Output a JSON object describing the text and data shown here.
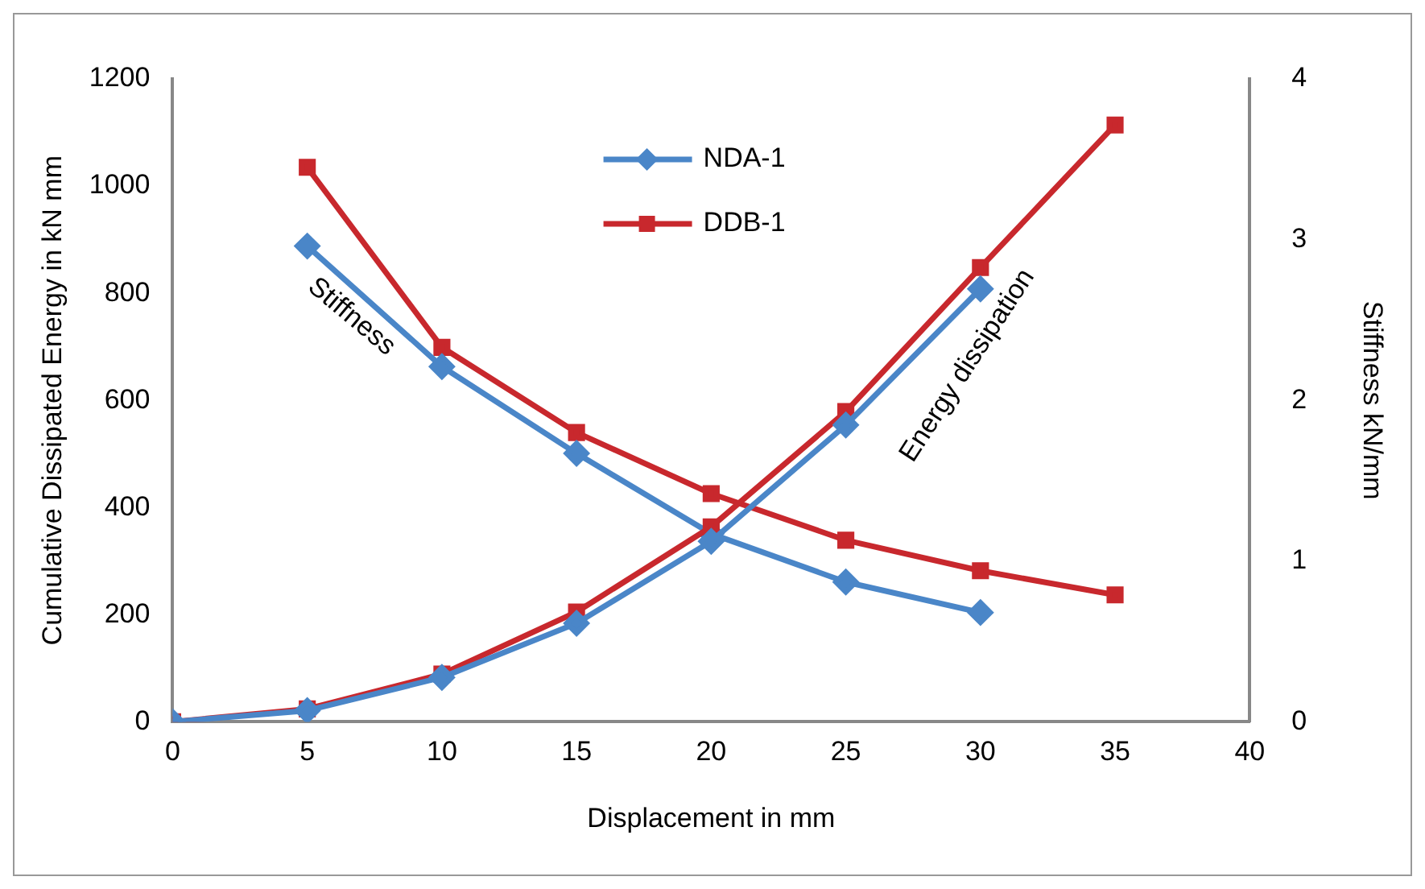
{
  "chart_data": {
    "type": "line",
    "xlabel": "Displacement in mm",
    "ylabel": "Cumulative Dissipated Energy in kN mm",
    "y2label": "Stiffness kN/mm",
    "x": [
      0,
      5,
      10,
      15,
      20,
      25,
      30,
      35
    ],
    "xlim": [
      0,
      40
    ],
    "xticks": [
      0,
      5,
      10,
      15,
      20,
      25,
      30,
      35,
      40
    ],
    "ylim": [
      0,
      1200
    ],
    "yticks": [
      0,
      200,
      400,
      600,
      800,
      1000,
      1200
    ],
    "y2lim": [
      0,
      4
    ],
    "y2ticks": [
      0,
      1,
      2,
      3,
      4
    ],
    "grid": false,
    "legend": "top",
    "line_style": "solid",
    "series": [
      {
        "name": "NDA-1",
        "color": "#4a86c8",
        "marker": "diamond",
        "values": [
          0,
          21,
          83,
          184,
          337,
          554,
          808,
          null
        ]
      },
      {
        "name": "DDB-1",
        "color": "#c8282d",
        "marker": "square",
        "values": [
          0,
          24,
          89,
          205,
          364,
          579,
          848,
          1114
        ]
      },
      {
        "color": "#4a86c8",
        "marker": "diamond",
        "axis": "y2",
        "values": [
          null,
          2.96,
          2.21,
          1.67,
          1.17,
          0.87,
          0.68,
          null
        ]
      },
      {
        "color": "#c8282d",
        "marker": "square",
        "axis": "y2",
        "values": [
          null,
          3.45,
          2.33,
          1.8,
          1.42,
          1.13,
          0.94,
          0.79
        ]
      }
    ],
    "annotations": [
      "Stiffness",
      "Energy dissipation"
    ]
  }
}
